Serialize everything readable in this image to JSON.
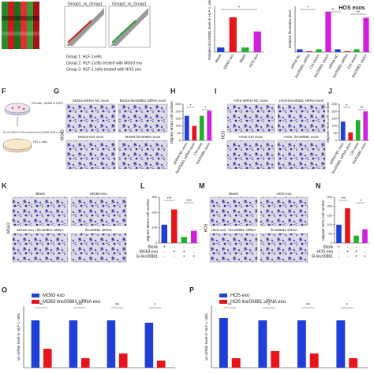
{
  "panels": {
    "scatter": {
      "titles": [
        "Group1_vs_Group1",
        "Group3_vs_Group1"
      ],
      "legend": [
        "Group 1: HLF-1cells",
        "Group 2: HLF-1cells treated with MG63 exo",
        "Group 3: HLF-1 cells treated with HOS exo"
      ]
    },
    "F": {
      "letter": "F",
      "labels": [
        "OS cells（MG63 or HOS）",
        "Exo from MG63 or HOS transfected with linc00881 siRNA or vector",
        "HFL-1 cells"
      ]
    },
    "G": {
      "letter": "G",
      "side": "MG63",
      "images": [
        "MG63-siRNA NC exos",
        "MG63-linc00881 siRNA exos",
        "MG63-Ctrl exos",
        "MG63-linc00881 exos"
      ]
    },
    "I": {
      "letter": "I",
      "side": "HOS",
      "images": [
        "HOS-siRNA NC exos",
        "HOS-linc00881 siRNA exos",
        "HOS-Ctrl exos",
        "HOS- linc00881 exos"
      ]
    },
    "K": {
      "letter": "K",
      "side": "MG63",
      "images": [
        "Blank",
        "MG63-exo",
        "MG63-exo +linc00881 siRNA",
        "linc00881 siRNA"
      ]
    },
    "M": {
      "letter": "M",
      "side": "HOS",
      "images": [
        "Blank",
        "HOS-exo",
        "HOS-exo +linc00881 siRNA",
        "linc00881 siRNA"
      ]
    }
  },
  "chart_data": [
    {
      "type": "bar",
      "ylabel": "Relative linc00881 level in HLF-1 cells",
      "categories": [
        "Blank",
        "MG63 exo",
        "Blank",
        "HOS exo"
      ],
      "values": [
        1,
        7.6,
        1,
        4.5
      ],
      "colors": [
        "#1f3fd6",
        "#e8141b",
        "#22b02c",
        "#d11fe0"
      ],
      "ylim": [
        0,
        10
      ],
      "annotations": [
        "*"
      ]
    },
    {
      "type": "bar",
      "title": "HOS exos",
      "ylabel": "Relative linc00881 level",
      "categories": [
        "siRNA NC",
        "linc00881 siRNA",
        "Ctrl vector",
        "linc00881 vector",
        "siRNA NC",
        "linc00881 siRNA",
        "Ctrl vector",
        "linc00881 vector"
      ],
      "values": [
        1,
        0.3,
        1,
        14,
        1,
        0.3,
        1,
        12
      ],
      "colors": [
        "#1f3fd6",
        "#e8141b",
        "#22b02c",
        "#d11fe0",
        "#1f3fd6",
        "#e8141b",
        "#22b02c",
        "#d11fe0"
      ],
      "ylim": [
        0,
        16
      ],
      "annotations": [
        "*",
        "**",
        "**"
      ]
    },
    {
      "type": "bar",
      "panel": "H",
      "ylabel": "Migrate MG63 cell number",
      "categories": [
        "siRNA NC exos",
        "linc00881 siRNA exos",
        "Ctrl exos",
        "linc00881 exos"
      ],
      "values": [
        170,
        100,
        170,
        205
      ],
      "colors": [
        "#1f3fd6",
        "#e8141b",
        "#22b02c",
        "#d11fe0"
      ],
      "ylim": [
        0,
        250
      ],
      "yticks": [
        0,
        50,
        100,
        150,
        200,
        250
      ],
      "annotations": [
        "*",
        "*"
      ]
    },
    {
      "type": "bar",
      "panel": "J",
      "ylabel": "Migrate HOS cell number",
      "categories": [
        "siRNA NC exos",
        "linc00881 siRNA exos",
        "Ctrl exos",
        "linc00881 exos"
      ],
      "values": [
        130,
        55,
        140,
        200
      ],
      "colors": [
        "#1f3fd6",
        "#e8141b",
        "#22b02c",
        "#d11fe0"
      ],
      "ylim": [
        0,
        250
      ],
      "yticks": [
        0,
        50,
        100,
        150,
        200,
        250
      ],
      "annotations": [
        "*",
        "**"
      ]
    },
    {
      "type": "bar",
      "panel": "L",
      "ylabel": "Migrate MG63 cell number",
      "values": [
        120,
        220,
        40,
        80
      ],
      "colors": [
        "#1f3fd6",
        "#e8141b",
        "#22b02c",
        "#d11fe0"
      ],
      "ylim": [
        0,
        300
      ],
      "yticks": [
        0,
        100,
        200,
        300
      ],
      "conditions": [
        {
          "label": "Blank",
          "signs": [
            "+",
            "-",
            "-",
            "-"
          ]
        },
        {
          "label": "MG63-exo",
          "signs": [
            "-",
            "+",
            "+",
            "-"
          ]
        },
        {
          "label": "Si-linc00881",
          "signs": [
            "-",
            "-",
            "+",
            "+"
          ]
        }
      ],
      "annotations": [
        "***",
        "***"
      ]
    },
    {
      "type": "bar",
      "panel": "N",
      "ylabel": "Migrate HOS cell number",
      "values": [
        100,
        190,
        40,
        75
      ],
      "colors": [
        "#1f3fd6",
        "#e8141b",
        "#22b02c",
        "#d11fe0"
      ],
      "ylim": [
        0,
        250
      ],
      "yticks": [
        0,
        50,
        100,
        150,
        200,
        250
      ],
      "conditions": [
        {
          "label": "Blank",
          "signs": [
            "+",
            "-",
            "-",
            "-"
          ]
        },
        {
          "label": "HOS-exo",
          "signs": [
            "-",
            "+",
            "+",
            "-"
          ]
        },
        {
          "label": "Si-linc00881",
          "signs": [
            "-",
            "-",
            "+",
            "+"
          ]
        }
      ],
      "annotations": [
        "***",
        "*"
      ]
    },
    {
      "type": "grouped",
      "panel": "O",
      "ylabel": "ve mRNA level in HLF-1 cells",
      "categories": [
        null,
        null,
        null,
        null
      ],
      "series": [
        {
          "name": "MG63 exo",
          "color": "#1f3fd6",
          "values": [
            1.0,
            1.0,
            1.0,
            0.95
          ]
        },
        {
          "name": "MG63 linc00881 siRNA exo",
          "color": "#e8141b",
          "values": [
            0.4,
            0.2,
            0.3,
            0.15
          ]
        }
      ],
      "ylim": [
        0,
        1.3
      ],
      "annotations": [
        "**",
        "***",
        "**",
        "*"
      ]
    },
    {
      "type": "grouped",
      "panel": "P",
      "ylabel": "ve mRNA level in HLF-1 cells",
      "categories": [
        null,
        null,
        null,
        null
      ],
      "series": [
        {
          "name": "HOS exo",
          "color": "#1f3fd6",
          "values": [
            1.05,
            1.0,
            1.0,
            1.0
          ]
        },
        {
          "name": "HOS linc00881 siRNA exo",
          "color": "#e8141b",
          "values": [
            0.2,
            0.35,
            0.3,
            0.2
          ]
        }
      ],
      "ylim": [
        0,
        1.3
      ],
      "annotations": [
        "**",
        "*",
        "**",
        "*"
      ]
    }
  ]
}
